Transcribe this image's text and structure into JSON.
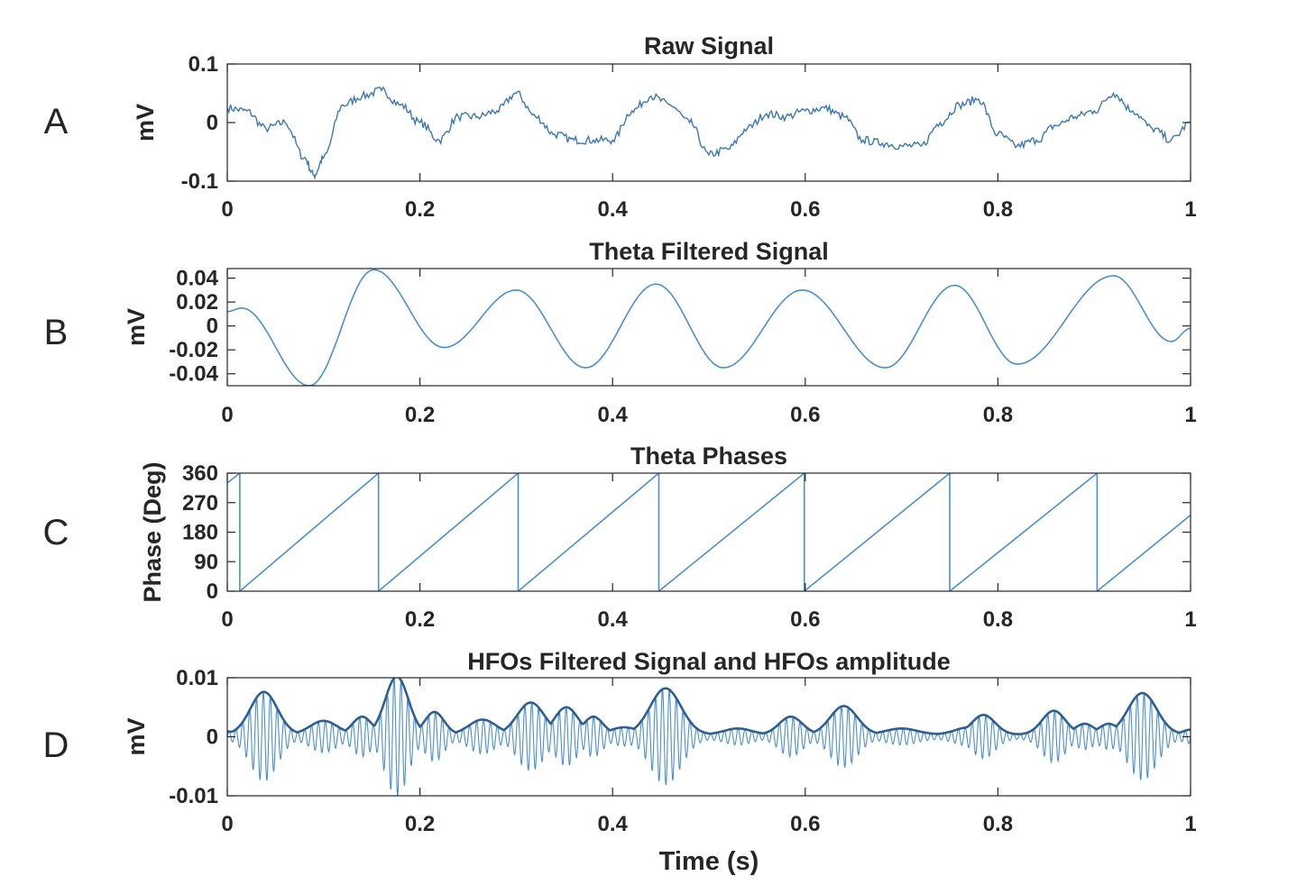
{
  "figure_xlabel": "Time (s)",
  "chart_data": [
    {
      "id": "A",
      "panel_letter": "A",
      "type": "line",
      "title": "Raw Signal",
      "ylabel": "mV",
      "xlabel": "",
      "xlim": [
        0,
        1
      ],
      "ylim": [
        -0.1,
        0.1
      ],
      "xticks": [
        0,
        0.2,
        0.4,
        0.6,
        0.8,
        1
      ],
      "xtick_labels": [
        "0",
        "0.2",
        "0.4",
        "0.6",
        "0.8",
        "1"
      ],
      "yticks": [
        -0.1,
        0,
        0.1
      ],
      "ytick_labels": [
        "-0.1",
        "0",
        "0.1"
      ],
      "series_color": "#3a78b5",
      "series": [
        {
          "x": [
            0,
            0.02,
            0.04,
            0.06,
            0.08,
            0.09,
            0.1,
            0.12,
            0.14,
            0.16,
            0.18,
            0.2,
            0.22,
            0.24,
            0.26,
            0.28,
            0.3,
            0.32,
            0.34,
            0.36,
            0.38,
            0.4,
            0.42,
            0.44,
            0.46,
            0.48,
            0.5,
            0.52,
            0.54,
            0.56,
            0.58,
            0.6,
            0.62,
            0.64,
            0.66,
            0.68,
            0.7,
            0.72,
            0.74,
            0.76,
            0.78,
            0.8,
            0.82,
            0.84,
            0.86,
            0.88,
            0.9,
            0.92,
            0.94,
            0.96,
            0.98,
            1.0
          ],
          "values": [
            0.025,
            0.02,
            -0.01,
            0.0,
            -0.06,
            -0.09,
            -0.06,
            0.03,
            0.045,
            0.055,
            0.03,
            0.0,
            -0.03,
            0.01,
            0.01,
            0.02,
            0.05,
            0.01,
            -0.02,
            -0.03,
            -0.03,
            -0.03,
            0.02,
            0.045,
            0.03,
            0.0,
            -0.055,
            -0.045,
            -0.01,
            0.015,
            0.01,
            0.02,
            0.025,
            0.01,
            -0.03,
            -0.035,
            -0.04,
            -0.04,
            0.0,
            0.03,
            0.04,
            -0.02,
            -0.04,
            -0.03,
            -0.005,
            0.01,
            0.02,
            0.05,
            0.02,
            -0.01,
            -0.03,
            0.0
          ]
        }
      ]
    },
    {
      "id": "B",
      "panel_letter": "B",
      "type": "line",
      "title": "Theta Filtered Signal",
      "ylabel": "mV",
      "xlabel": "",
      "xlim": [
        0,
        1
      ],
      "ylim": [
        -0.05,
        0.048
      ],
      "xticks": [
        0,
        0.2,
        0.4,
        0.6,
        0.8,
        1
      ],
      "xtick_labels": [
        "0",
        "0.2",
        "0.4",
        "0.6",
        "0.8",
        "1"
      ],
      "yticks": [
        -0.04,
        -0.02,
        0,
        0.02,
        0.04
      ],
      "ytick_labels": [
        "-0.04",
        "-0.02",
        "0",
        "0.02",
        "0.04"
      ],
      "series_color": "#4a8fd0",
      "series": [
        {
          "extrema": [
            [
              0,
              0.012
            ],
            [
              0.015,
              0.015
            ],
            [
              0.085,
              -0.05
            ],
            [
              0.152,
              0.047
            ],
            [
              0.225,
              -0.018
            ],
            [
              0.3,
              0.03
            ],
            [
              0.372,
              -0.035
            ],
            [
              0.445,
              0.035
            ],
            [
              0.515,
              -0.035
            ],
            [
              0.597,
              0.03
            ],
            [
              0.683,
              -0.035
            ],
            [
              0.755,
              0.034
            ],
            [
              0.82,
              -0.032
            ],
            [
              0.92,
              0.042
            ],
            [
              0.98,
              -0.013
            ],
            [
              1.0,
              -0.002
            ]
          ]
        }
      ]
    },
    {
      "id": "C",
      "panel_letter": "C",
      "type": "line",
      "title": "Theta Phases",
      "ylabel": "Phase (Deg)",
      "xlabel": "",
      "xlim": [
        0,
        1
      ],
      "ylim": [
        0,
        360
      ],
      "xticks": [
        0,
        0.2,
        0.4,
        0.6,
        0.8,
        1
      ],
      "xtick_labels": [
        "0",
        "0.2",
        "0.4",
        "0.6",
        "0.8",
        "1"
      ],
      "yticks": [
        0,
        90,
        180,
        270,
        360
      ],
      "ytick_labels": [
        "0",
        "90",
        "180",
        "270",
        "360"
      ],
      "series_color": "#4a8fd0",
      "series": [
        {
          "cycle_boundaries": [
            0.013,
            0.157,
            0.302,
            0.448,
            0.599,
            0.75,
            0.903
          ],
          "start_phase": 330,
          "end_phase": 232
        }
      ]
    },
    {
      "id": "D",
      "panel_letter": "D",
      "type": "line",
      "title": "HFOs Filtered Signal and HFOs amplitude",
      "ylabel": "mV",
      "xlabel": "Time (s)",
      "xlim": [
        0,
        1
      ],
      "ylim": [
        -0.01,
        0.01
      ],
      "xticks": [
        0,
        0.2,
        0.4,
        0.6,
        0.8,
        1
      ],
      "xtick_labels": [
        "0",
        "0.2",
        "0.4",
        "0.6",
        "0.8",
        "1"
      ],
      "yticks": [
        -0.01,
        0,
        0.01
      ],
      "ytick_labels": [
        "-0.01",
        "0",
        "0.01"
      ],
      "series_color": "#4a8fd0",
      "envelope_color": "#2e5f94",
      "hfo_cycles": 140,
      "series": [
        {
          "name": "",
          "bumps": [
            [
              0.0,
              0.0005,
              0.008
            ],
            [
              0.038,
              0.0072,
              0.014
            ],
            [
              0.1,
              0.0023,
              0.014
            ],
            [
              0.14,
              0.003,
              0.01
            ],
            [
              0.176,
              0.0098,
              0.012
            ],
            [
              0.215,
              0.0038,
              0.01
            ],
            [
              0.265,
              0.0025,
              0.014
            ],
            [
              0.315,
              0.0054,
              0.014
            ],
            [
              0.352,
              0.0046,
              0.012
            ],
            [
              0.38,
              0.003,
              0.01
            ],
            [
              0.412,
              0.0012,
              0.014
            ],
            [
              0.455,
              0.0078,
              0.016
            ],
            [
              0.53,
              0.001,
              0.014
            ],
            [
              0.585,
              0.003,
              0.012
            ],
            [
              0.64,
              0.0048,
              0.014
            ],
            [
              0.7,
              0.001,
              0.016
            ],
            [
              0.77,
              0.0012,
              0.014
            ],
            [
              0.785,
              0.0033,
              0.012
            ],
            [
              0.858,
              0.004,
              0.012
            ],
            [
              0.89,
              0.0018,
              0.01
            ],
            [
              0.915,
              0.0018,
              0.01
            ],
            [
              0.95,
              0.007,
              0.015
            ],
            [
              1.0,
              0.0008,
              0.008
            ]
          ]
        }
      ]
    }
  ]
}
